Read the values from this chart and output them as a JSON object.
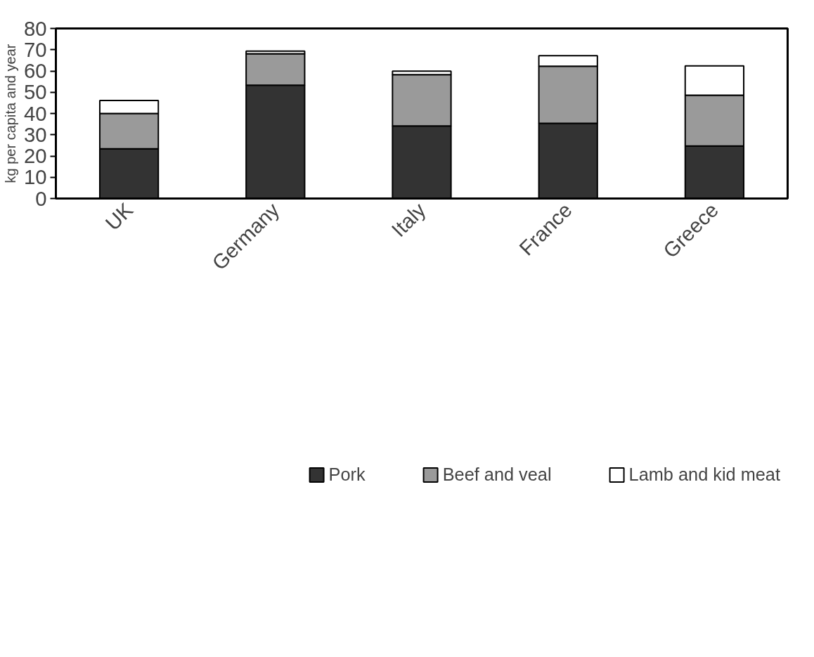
{
  "chart_data": {
    "type": "bar",
    "stacked": true,
    "ylabel": "kg per capita and year",
    "categories": [
      "UK",
      "Germany",
      "Italy",
      "France",
      "Greece"
    ],
    "series": [
      {
        "name": "Pork",
        "color": "#333333",
        "values": [
          23.4,
          53.3,
          34.1,
          35.4,
          24.7
        ]
      },
      {
        "name": "Beef and veal",
        "color": "#9a9a9a",
        "values": [
          16.6,
          14.8,
          24.2,
          26.8,
          23.9
        ]
      },
      {
        "name": "Lamb and kid meat",
        "color": "#ffffff",
        "values": [
          6.1,
          1.2,
          1.6,
          5.0,
          13.8
        ]
      }
    ],
    "ylim": [
      0,
      80
    ],
    "yticks": [
      0,
      10,
      20,
      30,
      40,
      50,
      60,
      70,
      80
    ],
    "grid": false,
    "legend": "bottom"
  }
}
